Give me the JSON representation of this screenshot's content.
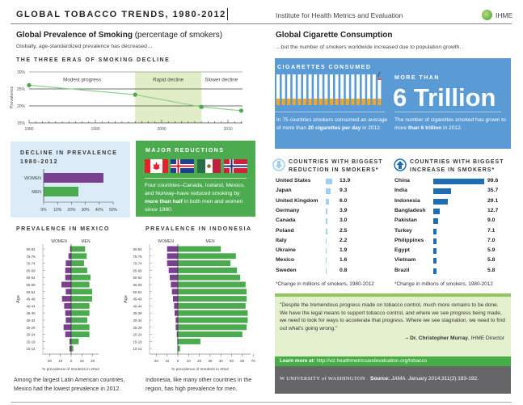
{
  "header": {
    "title": "GLOBAL TOBACCO TRENDS, 1980-2012",
    "institute": "Institute for Health Metrics and Evaluation",
    "logo_text": "IHME"
  },
  "left": {
    "heading": "Global Prevalence of Smoking",
    "heading_paren": "(percentage of smokers)",
    "subtitle": "Globally, age-standardized prevalence has decreased…",
    "eras_title": "THE THREE ERAS OF SMOKING DECLINE",
    "decline_title_1": "DECLINE IN PREVALENCE",
    "decline_title_2": "1980-2012",
    "major_title": "MAJOR REDUCTIONS",
    "major_text_1": "Four countries–Canada, Iceland, Mexico, and Norway–have reduced smoking by ",
    "major_text_bold": "more than half",
    "major_text_2": " in both men and women since 1980.",
    "flags": [
      "canada-flag",
      "iceland-flag",
      "mexico-flag",
      "norway-flag"
    ],
    "mexico_title": "PREVALENCE IN MEXICO",
    "indonesia_title": "PREVALENCE IN INDONESIA",
    "mexico_caption": "Among the largest Latin American countries, Mexico had the lowest prevalence in 2012.",
    "indonesia_caption": "Indonesia, like many other countries in the region, has high prevalence for men."
  },
  "right": {
    "heading": "Global Cigarette Consumption",
    "subtitle": "…but the number of smokers worldwide increased due to population growth.",
    "cig_title": "CIGARETTES CONSUMED",
    "more_than": "MORE THAN",
    "big_number": "6 Trillion",
    "cig_text_1": "In 75 countries smokers consumed an average of more than ",
    "cig_text_bold": "20 cigarettes per day",
    "cig_text_2": " in 2012.",
    "tril_text_1": "The number of cigarettes smoked has grown to more ",
    "tril_text_bold": "than 6 trillion",
    "tril_text_2": " in 2012.",
    "reduction_title_1": "COUNTRIES WITH BIGGEST",
    "reduction_title_2": "REDUCTION IN SMOKERS*",
    "increase_title_1": "COUNTRIES WITH BIGGEST",
    "increase_title_2": "INCREASE IN SMOKERS*",
    "footnote": "*Change in millions of smokers, 1980-2012",
    "quote": "\"Despite the tremendous progress made on tobacco control, much more remains to be done. We have the legal means to support tobacco control, and where we see progress being made, we need to look for ways to accelerate that progress. Where we see stagnation, we need to find out what's going wrong.\"",
    "quote_author": "– Dr. Christopher Murray",
    "quote_role": ", IHME Director",
    "learn_label": "Learn more at:",
    "learn_url": "http://viz.healthmetricsandevaluation.org/tobacco",
    "uw_logo": "W UNIVERSITY of WASHINGTON",
    "source_label": "Source:",
    "source_journal": "JAMA",
    "source_rest": ". January 2014;311(2):183-192."
  },
  "colors": {
    "green": "#4dab4f",
    "purple": "#7b3f8f",
    "blue": "#5b9bd5",
    "dark_blue": "#1f6db5",
    "light_blue": "#9fd0f2",
    "orange": "#f5a623"
  },
  "chart_data": [
    {
      "type": "line",
      "title": "THE THREE ERAS OF SMOKING DECLINE",
      "ylabel": "Prevalence",
      "x": [
        1980,
        1996,
        2006,
        2012
      ],
      "y": [
        26.1,
        23.3,
        19.7,
        18.6
      ],
      "xlim": [
        1980,
        2012
      ],
      "ylim": [
        15,
        30
      ],
      "xticks": [
        "1980",
        "1990",
        "2000",
        "2010"
      ],
      "yticks": [
        "15%",
        "20%",
        "25%",
        "30%"
      ],
      "eras": [
        {
          "label": "Modest progress",
          "from": 1980,
          "to": 1996
        },
        {
          "label": "Rapid decline",
          "from": 1996,
          "to": 2006
        },
        {
          "label": "Slower decline",
          "from": 2006,
          "to": 2012
        }
      ],
      "grid": true
    },
    {
      "type": "bar",
      "title": "DECLINE IN PREVALENCE 1980-2012",
      "categories": [
        "WOMEN",
        "MEN"
      ],
      "values": [
        43,
        25
      ],
      "xlim": [
        0,
        50
      ],
      "xticks": [
        "0%",
        "10%",
        "20%",
        "30%",
        "40%",
        "50%"
      ]
    },
    {
      "type": "bar",
      "title": "PREVALENCE IN MEXICO",
      "xlabel": "% prevalence of smokers in 2012",
      "ylabel": "Age",
      "categories": [
        "80-84",
        "75-79",
        "70-74",
        "65-69",
        "60-64",
        "55-59",
        "50-54",
        "45-49",
        "40-44",
        "35-39",
        "30-34",
        "25-29",
        "20-24",
        "15-19",
        "10-14"
      ],
      "series": [
        {
          "name": "WOMEN",
          "values": [
            1,
            2.5,
            5,
            5.5,
            5.5,
            9,
            5,
            8.5,
            6.5,
            5.5,
            5,
            7,
            5.5,
            1.5,
            1.5
          ]
        },
        {
          "name": "MEN",
          "values": [
            13,
            14.5,
            12,
            15,
            18,
            17,
            19.5,
            19.5,
            17,
            17,
            15,
            17,
            17,
            7,
            2
          ]
        }
      ],
      "xticks": [
        "20",
        "10",
        "0",
        "10",
        "20"
      ],
      "xlim": [
        -25,
        25
      ]
    },
    {
      "type": "bar",
      "title": "PREVALENCE IN INDONESIA",
      "xlabel": "% prevalence of smokers in 2012",
      "ylabel": "Age",
      "categories": [
        "80-84",
        "75-79",
        "70-74",
        "65-69",
        "60-64",
        "55-59",
        "50-54",
        "45-49",
        "40-44",
        "35-39",
        "30-34",
        "25-29",
        "20-24",
        "15-19",
        "10-14"
      ],
      "series": [
        {
          "name": "WOMEN",
          "values": [
            10,
            10,
            10,
            8.5,
            7.5,
            6.5,
            5.5,
            4.5,
            3.5,
            3,
            2,
            2,
            1,
            0.5,
            0.3
          ]
        },
        {
          "name": "MEN",
          "values": [
            40,
            54,
            49,
            55,
            58,
            63,
            64,
            64,
            63,
            65,
            65,
            64,
            60,
            21,
            2
          ]
        }
      ],
      "xticks": [
        "20",
        "10",
        "0",
        "10",
        "20",
        "30",
        "40",
        "50",
        "60",
        "70"
      ],
      "xlim": [
        -25,
        70
      ]
    },
    {
      "type": "bar",
      "title": "COUNTRIES WITH BIGGEST REDUCTION IN SMOKERS*",
      "categories": [
        "United States",
        "Japan",
        "United Kingdom",
        "Germany",
        "Canada",
        "Poland",
        "Italy",
        "Ukraine",
        "Mexico",
        "Sweden"
      ],
      "values": [
        13.9,
        9.3,
        6.0,
        3.9,
        3.0,
        2.5,
        2.2,
        1.9,
        1.6,
        0.8
      ],
      "labels": [
        "13.9",
        "9.3",
        "6.0",
        "3.9",
        "3.0",
        "2.5",
        "2.2",
        "1.9",
        "1.6",
        "0.8"
      ]
    },
    {
      "type": "bar",
      "title": "COUNTRIES WITH BIGGEST INCREASE IN SMOKERS*",
      "categories": [
        "China",
        "India",
        "Indonesia",
        "Bangladesh",
        "Pakistan",
        "Turkey",
        "Philippines",
        "Egypt",
        "Vietnam",
        "Brazil"
      ],
      "values": [
        99.6,
        35.7,
        29.1,
        12.7,
        9.0,
        7.1,
        7.0,
        5.9,
        5.8,
        5.8
      ],
      "labels": [
        "99.6",
        "35.7",
        "29.1",
        "12.7",
        "9.0",
        "7.1",
        "7.0",
        "5.9",
        "5.8",
        "5.8"
      ]
    }
  ]
}
